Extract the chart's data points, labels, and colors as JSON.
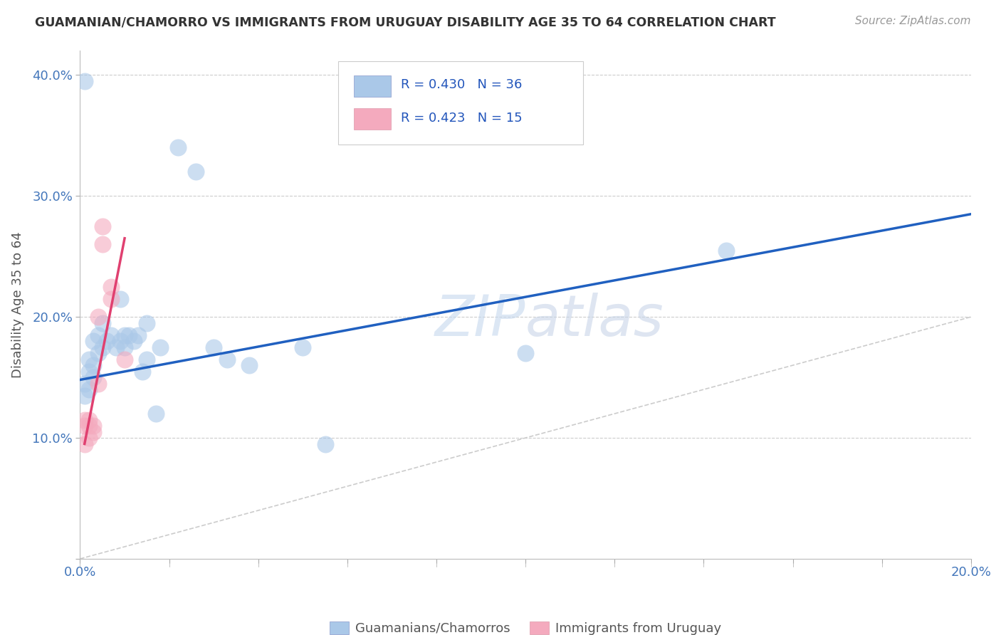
{
  "title": "GUAMANIAN/CHAMORRO VS IMMIGRANTS FROM URUGUAY DISABILITY AGE 35 TO 64 CORRELATION CHART",
  "source": "Source: ZipAtlas.com",
  "ylabel": "Disability Age 35 to 64",
  "xlim": [
    0.0,
    0.2
  ],
  "ylim": [
    0.0,
    0.42
  ],
  "xticks": [
    0.0,
    0.02,
    0.04,
    0.06,
    0.08,
    0.1,
    0.12,
    0.14,
    0.16,
    0.18,
    0.2
  ],
  "xticklabels": [
    "0.0%",
    "",
    "",
    "",
    "",
    "",
    "",
    "",
    "",
    "",
    "20.0%"
  ],
  "yticks": [
    0.0,
    0.1,
    0.2,
    0.3,
    0.4
  ],
  "yticklabels": [
    "",
    "10.0%",
    "20.0%",
    "30.0%",
    "40.0%"
  ],
  "legend_labels": [
    "Guamanians/Chamorros",
    "Immigrants from Uruguay"
  ],
  "blue_R": "0.430",
  "blue_N": "36",
  "pink_R": "0.423",
  "pink_N": "15",
  "blue_color": "#aac8e8",
  "pink_color": "#f4aabe",
  "blue_line_color": "#2060c0",
  "pink_line_color": "#e04070",
  "diagonal_color": "#cccccc",
  "watermark": "ZIPAtlas",
  "blue_scatter": [
    [
      0.001,
      0.135
    ],
    [
      0.001,
      0.145
    ],
    [
      0.002,
      0.14
    ],
    [
      0.002,
      0.155
    ],
    [
      0.002,
      0.165
    ],
    [
      0.003,
      0.15
    ],
    [
      0.003,
      0.16
    ],
    [
      0.003,
      0.18
    ],
    [
      0.004,
      0.17
    ],
    [
      0.004,
      0.185
    ],
    [
      0.005,
      0.175
    ],
    [
      0.005,
      0.195
    ],
    [
      0.006,
      0.18
    ],
    [
      0.007,
      0.185
    ],
    [
      0.008,
      0.175
    ],
    [
      0.009,
      0.18
    ],
    [
      0.009,
      0.215
    ],
    [
      0.01,
      0.175
    ],
    [
      0.01,
      0.185
    ],
    [
      0.011,
      0.185
    ],
    [
      0.012,
      0.18
    ],
    [
      0.013,
      0.185
    ],
    [
      0.014,
      0.155
    ],
    [
      0.015,
      0.165
    ],
    [
      0.015,
      0.195
    ],
    [
      0.017,
      0.12
    ],
    [
      0.018,
      0.175
    ],
    [
      0.022,
      0.34
    ],
    [
      0.026,
      0.32
    ],
    [
      0.03,
      0.175
    ],
    [
      0.033,
      0.165
    ],
    [
      0.038,
      0.16
    ],
    [
      0.05,
      0.175
    ],
    [
      0.055,
      0.095
    ],
    [
      0.1,
      0.17
    ],
    [
      0.145,
      0.255
    ]
  ],
  "blue_scatter_outlier": [
    0.001,
    0.395
  ],
  "pink_scatter": [
    [
      0.001,
      0.095
    ],
    [
      0.001,
      0.11
    ],
    [
      0.001,
      0.115
    ],
    [
      0.002,
      0.1
    ],
    [
      0.002,
      0.11
    ],
    [
      0.002,
      0.115
    ],
    [
      0.003,
      0.105
    ],
    [
      0.003,
      0.11
    ],
    [
      0.004,
      0.145
    ],
    [
      0.004,
      0.2
    ],
    [
      0.005,
      0.275
    ],
    [
      0.005,
      0.26
    ],
    [
      0.007,
      0.215
    ],
    [
      0.007,
      0.225
    ],
    [
      0.01,
      0.165
    ]
  ],
  "blue_trendline": [
    [
      0.0,
      0.148
    ],
    [
      0.2,
      0.285
    ]
  ],
  "pink_trendline": [
    [
      0.001,
      0.095
    ],
    [
      0.01,
      0.265
    ]
  ],
  "grid_color": "#cccccc",
  "bg_color": "#ffffff",
  "title_color": "#333333",
  "label_color": "#555555",
  "tick_color": "#4477bb",
  "legend_text_color": "#2255bb"
}
